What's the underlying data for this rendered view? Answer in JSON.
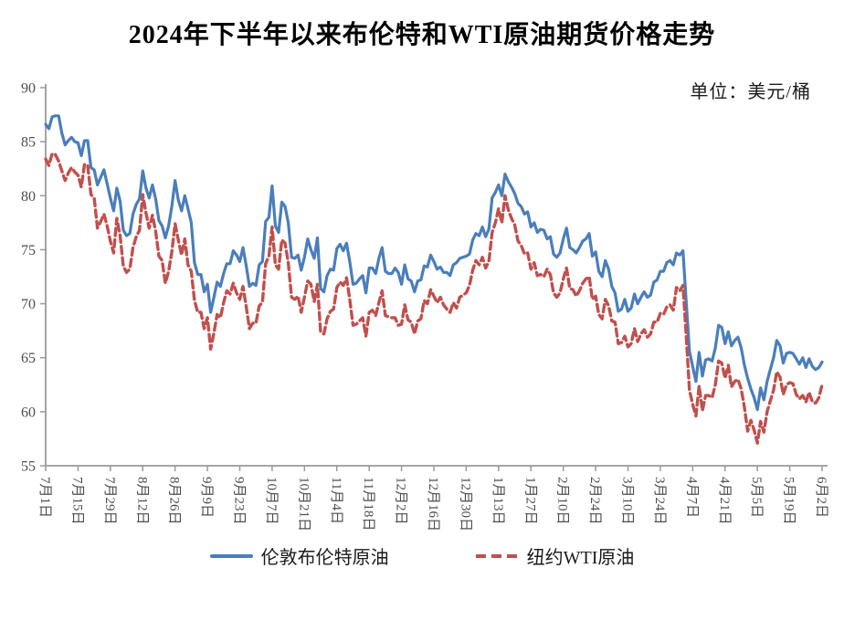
{
  "title": "2024年下半年以来布伦特和WTI原油期货价格走势",
  "unit_label": "单位：美元/桶",
  "colors": {
    "brent": "#4A7EBB",
    "wti": "#C0504D",
    "axis": "#9a9a9a",
    "tick_text": "#4d4d4d",
    "background": "#FFFFFF"
  },
  "chart_data": {
    "type": "line",
    "title": "2024年下半年以来布伦特和WTI原油期货价格走势",
    "ylabel": "美元/桶",
    "xlabel": "",
    "ylim": [
      55,
      90
    ],
    "y_ticks": [
      55,
      60,
      65,
      70,
      75,
      80,
      85,
      90
    ],
    "grid": false,
    "legend_position": "bottom",
    "x_tick_labels": [
      "7月1日",
      "7月15日",
      "7月29日",
      "8月12日",
      "8月26日",
      "9月9日",
      "9月23日",
      "10月7日",
      "10月21日",
      "11月4日",
      "11月18日",
      "12月2日",
      "12月16日",
      "12月30日",
      "1月13日",
      "1月27日",
      "2月10日",
      "2月24日",
      "3月10日",
      "3月24日",
      "4月7日",
      "4月21日",
      "5月5日",
      "5月19日",
      "6月2日"
    ],
    "points_per_tick": 10,
    "series": [
      {
        "name": "伦敦布伦特原油",
        "color": "#4A7EBB",
        "style": "solid",
        "values": [
          86.6,
          86.2,
          87.3,
          87.4,
          87.4,
          85.8,
          84.7,
          85.1,
          85.4,
          85.0,
          84.9,
          83.7,
          85.1,
          85.1,
          82.6,
          82.4,
          81.0,
          81.7,
          82.4,
          81.1,
          79.8,
          78.6,
          80.7,
          79.5,
          76.8,
          76.3,
          76.5,
          78.3,
          79.2,
          79.7,
          82.3,
          80.7,
          79.8,
          81.0,
          79.7,
          77.7,
          77.2,
          76.1,
          77.2,
          79.0,
          81.4,
          79.6,
          78.6,
          80.0,
          78.8,
          77.5,
          73.8,
          72.7,
          72.7,
          71.1,
          71.8,
          69.2,
          70.6,
          72.0,
          71.6,
          72.8,
          73.7,
          73.7,
          74.9,
          74.5,
          73.9,
          75.2,
          73.5,
          71.6,
          71.9,
          71.7,
          73.6,
          73.9,
          77.6,
          78.0,
          80.9,
          77.2,
          76.6,
          79.4,
          79.0,
          77.5,
          74.3,
          74.2,
          74.5,
          73.1,
          74.3,
          76.0,
          75.0,
          74.2,
          76.1,
          71.4,
          71.1,
          72.6,
          73.2,
          73.1,
          75.1,
          75.5,
          74.9,
          75.6,
          73.9,
          71.8,
          71.9,
          72.3,
          72.6,
          71.0,
          73.3,
          73.3,
          72.8,
          74.2,
          75.2,
          73.0,
          72.8,
          72.8,
          73.3,
          72.9,
          71.8,
          73.6,
          72.3,
          72.1,
          71.1,
          72.1,
          72.2,
          73.5,
          73.4,
          74.5,
          73.9,
          73.2,
          73.4,
          72.9,
          72.9,
          72.6,
          73.6,
          73.8,
          74.2,
          74.3,
          74.4,
          74.6,
          75.9,
          76.5,
          76.3,
          77.1,
          76.2,
          76.9,
          79.8,
          80.3,
          81.0,
          80.0,
          82.0,
          81.3,
          80.8,
          80.2,
          79.3,
          79.0,
          78.3,
          78.5,
          77.1,
          77.5,
          76.6,
          76.9,
          76.8,
          76.0,
          76.2,
          74.6,
          74.3,
          74.7,
          76.0,
          77.0,
          75.2,
          75.0,
          74.7,
          75.2,
          75.8,
          76.0,
          76.5,
          74.4,
          74.8,
          73.0,
          72.5,
          74.0,
          73.2,
          71.6,
          71.0,
          69.3,
          69.5,
          70.4,
          69.3,
          69.6,
          70.9,
          70.0,
          70.6,
          71.1,
          70.6,
          70.8,
          72.0,
          72.2,
          73.0,
          73.0,
          73.8,
          74.0,
          73.6,
          74.7,
          74.5,
          74.9,
          70.1,
          65.6,
          64.2,
          62.8,
          65.5,
          63.3,
          64.8,
          64.9,
          64.7,
          65.9,
          68.0,
          67.8,
          66.3,
          67.4,
          66.1,
          66.6,
          66.9,
          65.9,
          64.3,
          63.1,
          62.1,
          61.3,
          60.2,
          62.2,
          61.1,
          62.8,
          63.9,
          65.0,
          66.6,
          66.1,
          64.5,
          65.4,
          65.5,
          65.4,
          64.9,
          64.4,
          65.0,
          64.1,
          64.9,
          64.2,
          63.9,
          64.1,
          64.6
        ]
      },
      {
        "name": "纽约WTI原油",
        "color": "#C0504D",
        "style": "dashed",
        "values": [
          83.4,
          82.8,
          83.9,
          83.8,
          83.2,
          82.3,
          81.4,
          82.1,
          82.6,
          82.2,
          81.9,
          80.8,
          82.9,
          82.8,
          80.1,
          79.8,
          77.0,
          77.6,
          78.3,
          77.2,
          75.8,
          74.7,
          77.9,
          76.3,
          73.5,
          72.9,
          73.2,
          75.2,
          76.2,
          76.8,
          80.1,
          78.4,
          77.0,
          78.2,
          76.7,
          74.4,
          74.0,
          71.9,
          73.0,
          74.8,
          77.4,
          75.9,
          74.5,
          76.0,
          73.6,
          73.0,
          70.3,
          69.2,
          69.2,
          67.7,
          68.7,
          65.8,
          67.3,
          69.0,
          68.7,
          70.1,
          71.2,
          70.9,
          71.9,
          71.0,
          70.4,
          71.6,
          69.7,
          67.7,
          68.2,
          68.2,
          69.8,
          70.1,
          73.7,
          74.4,
          77.1,
          73.6,
          73.2,
          75.9,
          75.6,
          73.8,
          70.6,
          70.4,
          70.7,
          69.2,
          70.6,
          72.1,
          71.8,
          70.2,
          71.8,
          67.4,
          67.2,
          68.6,
          69.3,
          69.5,
          71.5,
          72.0,
          71.7,
          72.4,
          70.4,
          68.0,
          68.1,
          68.4,
          68.7,
          67.0,
          69.2,
          69.4,
          68.9,
          70.1,
          71.2,
          68.9,
          68.8,
          68.7,
          68.7,
          68.0,
          68.1,
          69.9,
          68.5,
          68.3,
          67.2,
          68.4,
          68.6,
          70.3,
          70.0,
          71.3,
          70.7,
          70.1,
          70.6,
          69.9,
          69.5,
          69.2,
          70.1,
          69.6,
          70.6,
          70.8,
          71.0,
          71.7,
          73.1,
          74.0,
          73.6,
          74.3,
          73.3,
          73.9,
          76.6,
          77.5,
          78.8,
          77.5,
          80.0,
          78.7,
          77.9,
          77.3,
          75.8,
          75.4,
          74.6,
          74.7,
          73.2,
          73.8,
          72.6,
          72.7,
          72.5,
          73.2,
          72.7,
          71.0,
          70.6,
          71.0,
          72.3,
          73.3,
          71.4,
          71.3,
          70.7,
          71.2,
          71.9,
          72.3,
          72.5,
          70.4,
          70.7,
          69.0,
          68.6,
          70.4,
          69.8,
          68.4,
          68.3,
          66.3,
          66.4,
          67.0,
          66.0,
          66.3,
          67.7,
          66.5,
          67.2,
          67.6,
          66.9,
          67.2,
          68.3,
          68.3,
          69.1,
          69.0,
          69.7,
          69.9,
          69.4,
          71.5,
          71.2,
          71.7,
          67.0,
          62.0,
          60.7,
          59.6,
          62.4,
          60.1,
          61.5,
          61.5,
          61.3,
          62.5,
          64.7,
          64.5,
          63.1,
          64.3,
          62.3,
          62.8,
          63.0,
          62.1,
          60.4,
          58.2,
          59.2,
          58.3,
          57.1,
          59.1,
          58.1,
          60.0,
          61.0,
          62.0,
          63.7,
          63.2,
          61.6,
          62.5,
          62.7,
          62.6,
          61.6,
          61.2,
          61.5,
          60.9,
          61.8,
          60.9,
          60.8,
          61.3,
          62.5
        ]
      }
    ]
  }
}
